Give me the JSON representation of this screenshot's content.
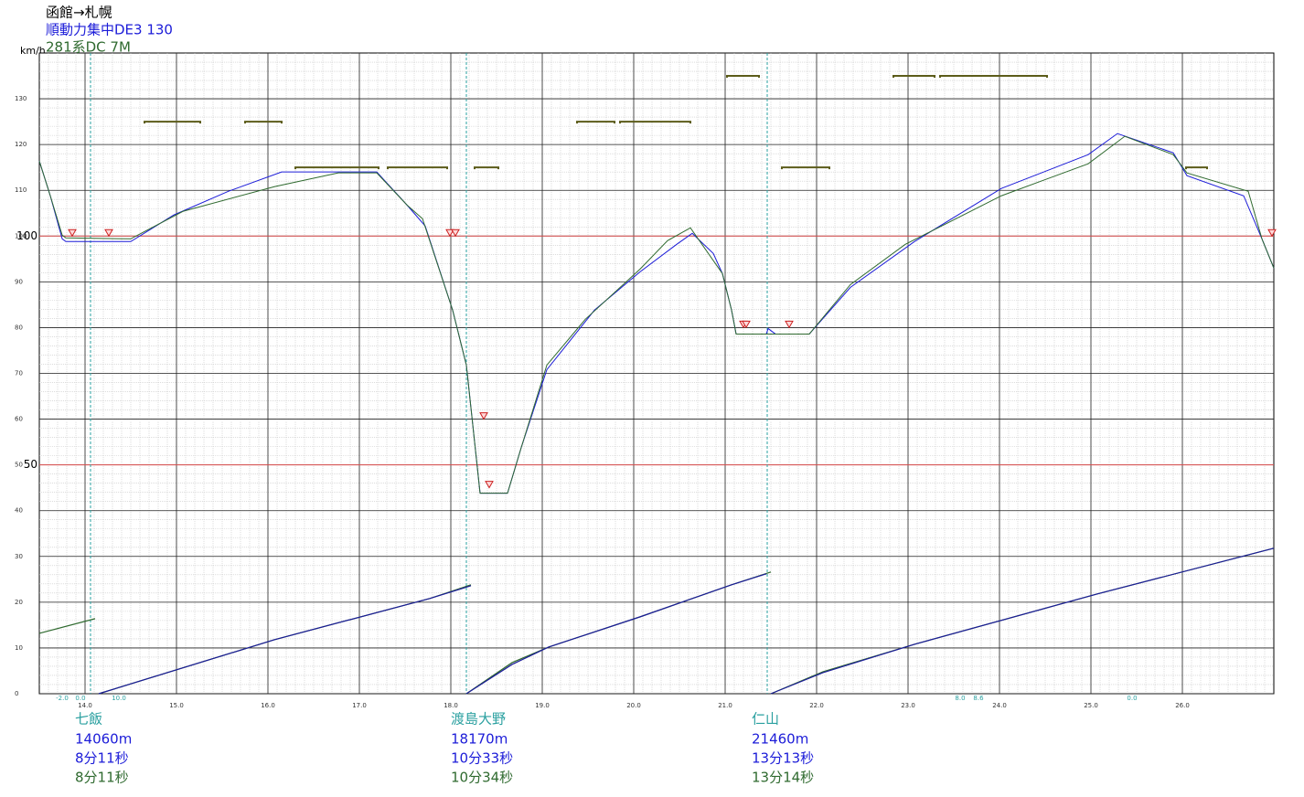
{
  "chart_data": {
    "type": "line",
    "title": "函館→札幌",
    "y_label": "km/h",
    "xlim": [
      13.5,
      27.0
    ],
    "ylim": [
      0,
      140
    ],
    "xticks": [
      {
        "value": 14,
        "label": "14.0"
      },
      {
        "value": 15,
        "label": "15.0"
      },
      {
        "value": 16,
        "label": "16.0"
      },
      {
        "value": 17,
        "label": "17.0"
      },
      {
        "value": 18,
        "label": "18.0"
      },
      {
        "value": 19,
        "label": "19.0"
      },
      {
        "value": 20,
        "label": "20.0"
      },
      {
        "value": 21,
        "label": "21.0"
      },
      {
        "value": 22,
        "label": "22.0"
      },
      {
        "value": 23,
        "label": "23.0"
      },
      {
        "value": 24,
        "label": "24.0"
      },
      {
        "value": 25,
        "label": "25.0"
      },
      {
        "value": 26,
        "label": "26.0"
      }
    ],
    "yticks": [
      0,
      10,
      20,
      30,
      40,
      50,
      60,
      70,
      80,
      90,
      100,
      110,
      120,
      130
    ],
    "grid": true,
    "minor_xstep": 0.1,
    "minor_ystep": 2,
    "reference_lines": [
      100,
      50
    ],
    "reference_color": "#e05050",
    "series": [
      {
        "name": "順動力集中DE3 130",
        "color": "#1c1cd8",
        "x": [
          13.5,
          13.62,
          13.75,
          13.79,
          14.5,
          14.97,
          15.57,
          16.15,
          17.19,
          17.52,
          17.72,
          18.02,
          18.17,
          18.32,
          18.62,
          18.77,
          19.05,
          19.57,
          20.07,
          20.47,
          20.64,
          20.87,
          20.97,
          21.07,
          21.12,
          21.45,
          21.47,
          21.55,
          21.92,
          22.37,
          23.07,
          24.02,
          24.97,
          25.29,
          25.9,
          26.05,
          26.67,
          26.87,
          27.0
        ],
        "values": [
          116.4,
          108.8,
          99.4,
          98.8,
          98.8,
          104.6,
          109.8,
          114,
          114,
          106.8,
          102.2,
          83.8,
          71.8,
          43.8,
          43.8,
          53.8,
          70.8,
          83.8,
          92.2,
          98.2,
          100.6,
          96.2,
          91.8,
          83.8,
          78.6,
          78.6,
          79.8,
          78.6,
          78.6,
          88.8,
          98.8,
          110.4,
          117.8,
          122.4,
          118.2,
          113.2,
          108.8,
          99.4,
          93
        ]
      },
      {
        "name": "281系DC 7M",
        "color": "#2f6a2f",
        "x": [
          13.5,
          13.62,
          13.75,
          13.79,
          14.5,
          15.07,
          16.07,
          16.77,
          17.19,
          17.52,
          17.69,
          18.02,
          18.17,
          18.32,
          18.62,
          18.77,
          19.05,
          19.47,
          20.07,
          20.37,
          20.62,
          20.97,
          21.07,
          21.12,
          21.45,
          21.55,
          21.92,
          22.37,
          22.97,
          24.02,
          24.97,
          25.37,
          25.9,
          26.05,
          26.72,
          26.87,
          27.0
        ],
        "values": [
          116.4,
          108.8,
          100.2,
          99.6,
          99.4,
          105.4,
          110.8,
          113.8,
          113.8,
          106.8,
          103.8,
          83.8,
          71.8,
          43.8,
          43.8,
          53.8,
          71.8,
          81.8,
          92.8,
          99,
          101.8,
          91.8,
          83.8,
          78.6,
          78.6,
          78.6,
          78.6,
          89.4,
          98.2,
          108.8,
          115.8,
          121.8,
          117.8,
          113.8,
          109.8,
          99.4,
          93
        ]
      }
    ],
    "time_series": [
      {
        "color": "#2f6a2f",
        "x": [
          13.5,
          14.11,
          14.13,
          14.15,
          16.07,
          17.77,
          18.22,
          18.2,
          18.17,
          18.67,
          19.07,
          20.07,
          21.07,
          21.5,
          21.5,
          21.5,
          22.07,
          23.07,
          25.07,
          27.0
        ],
        "values": [
          13.2,
          16.4,
          null,
          0,
          11.8,
          20.8,
          23.8,
          null,
          0,
          6.8,
          10.2,
          16.8,
          23.8,
          26.6,
          null,
          0,
          4.8,
          10.8,
          21.8,
          31.8
        ]
      },
      {
        "color": "#1c1c9a",
        "x": [
          14.15,
          16.07,
          17.77,
          18.22,
          18.2,
          18.17,
          18.67,
          19.07,
          20.07,
          21.07,
          21.45,
          21.5,
          21.5,
          22.07,
          23.07,
          25.07,
          27.0
        ],
        "values": [
          0,
          11.8,
          20.8,
          23.6,
          null,
          0,
          6.4,
          10.2,
          16.8,
          23.8,
          26.2,
          null,
          0,
          4.6,
          10.8,
          21.8,
          31.8
        ]
      }
    ],
    "speed_limits": [
      {
        "from": 14.65,
        "to": 15.26,
        "value": 125
      },
      {
        "from": 15.75,
        "to": 16.15,
        "value": 125
      },
      {
        "from": 19.38,
        "to": 19.79,
        "value": 125
      },
      {
        "from": 19.85,
        "to": 20.62,
        "value": 125
      },
      {
        "from": 16.3,
        "to": 17.21,
        "value": 115
      },
      {
        "from": 17.31,
        "to": 17.96,
        "value": 115
      },
      {
        "from": 18.26,
        "to": 18.52,
        "value": 115
      },
      {
        "from": 21.62,
        "to": 22.14,
        "value": 115
      },
      {
        "from": 26.04,
        "to": 26.27,
        "value": 115
      },
      {
        "from": 21.02,
        "to": 21.37,
        "value": 135
      },
      {
        "from": 22.84,
        "to": 23.29,
        "value": 135
      },
      {
        "from": 23.35,
        "to": 24.52,
        "value": 135
      }
    ],
    "limit_color": "#5c5c1a",
    "brake_points": {
      "x": [
        13.86,
        14.26,
        17.99,
        18.05,
        18.36,
        18.42,
        21.2,
        21.23,
        21.7,
        26.98
      ],
      "values": [
        100,
        100,
        100,
        100,
        60,
        45,
        80,
        80,
        80,
        100
      ],
      "color": "#cc2020"
    },
    "grade_labels": [
      {
        "x": 13.75,
        "label": "-2.0"
      },
      {
        "x": 13.95,
        "label": "0.0"
      },
      {
        "x": 14.37,
        "label": "10.0"
      },
      {
        "x": 23.57,
        "label": "8.0"
      },
      {
        "x": 23.77,
        "label": "8.6"
      },
      {
        "x": 25.45,
        "label": "0.0"
      }
    ],
    "stations": [
      {
        "x": 14.06,
        "name": "七飯",
        "distance": "14060m",
        "times": [
          "8分11秒",
          "8分11秒"
        ]
      },
      {
        "x": 18.17,
        "name": "渡島大野",
        "distance": "18170m",
        "times": [
          "10分33秒",
          "10分34秒"
        ]
      },
      {
        "x": 21.46,
        "name": "仁山",
        "distance": "21460m",
        "times": [
          "13分13秒",
          "13分14秒"
        ]
      }
    ],
    "station_color": "#2aa0a0"
  }
}
